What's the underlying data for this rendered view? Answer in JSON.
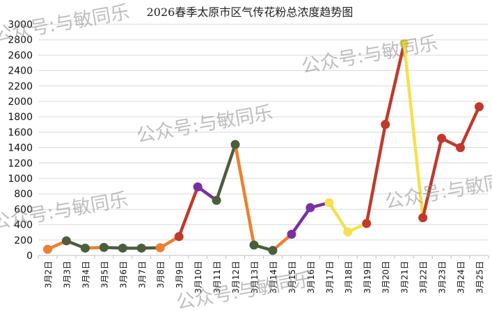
{
  "chart_data": {
    "type": "line",
    "title": "2026春季太原市区气传花粉总浓度趋势图",
    "xlabel": "",
    "ylabel": "",
    "ylim": [
      0,
      3000
    ],
    "yticks": [
      0,
      200,
      400,
      600,
      800,
      1000,
      1200,
      1400,
      1600,
      1800,
      2000,
      2200,
      2400,
      2600,
      2800,
      3000
    ],
    "grid": true,
    "legend": "none",
    "categories": [
      "3月2日",
      "3月3日",
      "3月4日",
      "3月5日",
      "3月6日",
      "3月7日",
      "3月8日",
      "3月9日",
      "3月10日",
      "3月11日",
      "3月12日",
      "3月13日",
      "3月14日",
      "3月15日",
      "3月16日",
      "3月17日",
      "3月18日",
      "3月19日",
      "3月20日",
      "3月21日",
      "3月22日",
      "3月23日",
      "3月24日",
      "3月25日"
    ],
    "values": [
      80,
      190,
      95,
      105,
      95,
      95,
      100,
      245,
      890,
      715,
      1440,
      135,
      65,
      275,
      620,
      685,
      305,
      415,
      1700,
      2750,
      490,
      1520,
      1400,
      1930
    ],
    "point_colors": [
      "#ee7f2d",
      "#4c5e3a",
      "#4c5e3a",
      "#4c5e3a",
      "#4c5e3a",
      "#4c5e3a",
      "#ee7f2d",
      "#c0392b",
      "#7b2fa3",
      "#4c5e3a",
      "#4c5e3a",
      "#4c5e3a",
      "#4c5e3a",
      "#7b2fa3",
      "#7b2fa3",
      "#f5e050",
      "#f5e050",
      "#c0392b",
      "#c0392b",
      "#e8d442",
      "#c0392b",
      "#c0392b",
      "#c0392b",
      "#c0392b"
    ],
    "segment_colors": [
      "#ee7f2d",
      "#4c5e3a",
      "#ee7f2d",
      "#4c5e3a",
      "#4c5e3a",
      "#4c5e3a",
      "#ee7f2d",
      "#c0392b",
      "#7b2fa3",
      "#4c5e3a",
      "#ee7f2d",
      "#4c5e3a",
      "#ee7f2d",
      "#7b2fa3",
      "#7b2fa3",
      "#f5e050",
      "#f5e050",
      "#c0392b",
      "#c0392b",
      "#f5e050",
      "#c0392b",
      "#c0392b",
      "#c0392b"
    ],
    "watermark": "公众号:与敏同乐"
  },
  "colors": {
    "grid": "#d9d9d9",
    "axis": "#bfbfbf",
    "orange": "#ee7f2d",
    "dark_green": "#4c5e3a",
    "red": "#c0392b",
    "purple": "#7b2fa3",
    "yellow": "#f5e050"
  }
}
